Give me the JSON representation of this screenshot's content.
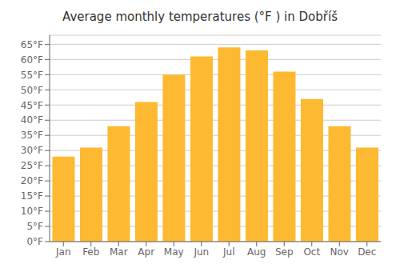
{
  "chart_data": {
    "type": "bar",
    "title": "Average monthly temperatures (°F ) in Dobříš",
    "categories": [
      "Jan",
      "Feb",
      "Mar",
      "Apr",
      "May",
      "Jun",
      "Jul",
      "Aug",
      "Sep",
      "Oct",
      "Nov",
      "Dec"
    ],
    "values": [
      28,
      31,
      38,
      46,
      55,
      61,
      64,
      63,
      56,
      47,
      38,
      31
    ],
    "color": "#FDB931",
    "ylim": [
      0,
      68
    ],
    "yticks": [
      {
        "value": 0,
        "label": "0°F"
      },
      {
        "value": 5,
        "label": "5°F"
      },
      {
        "value": 10,
        "label": "10°F"
      },
      {
        "value": 15,
        "label": "15°F"
      },
      {
        "value": 20,
        "label": "20°F"
      },
      {
        "value": 25,
        "label": "25°F"
      },
      {
        "value": 30,
        "label": "30°F"
      },
      {
        "value": 35,
        "label": "35°F"
      },
      {
        "value": 40,
        "label": "40°F"
      },
      {
        "value": 45,
        "label": "45°F"
      },
      {
        "value": 50,
        "label": "50°F"
      },
      {
        "value": 55,
        "label": "55°F"
      },
      {
        "value": 60,
        "label": "60°F"
      },
      {
        "value": 65,
        "label": "65°F"
      }
    ],
    "grid": true
  }
}
